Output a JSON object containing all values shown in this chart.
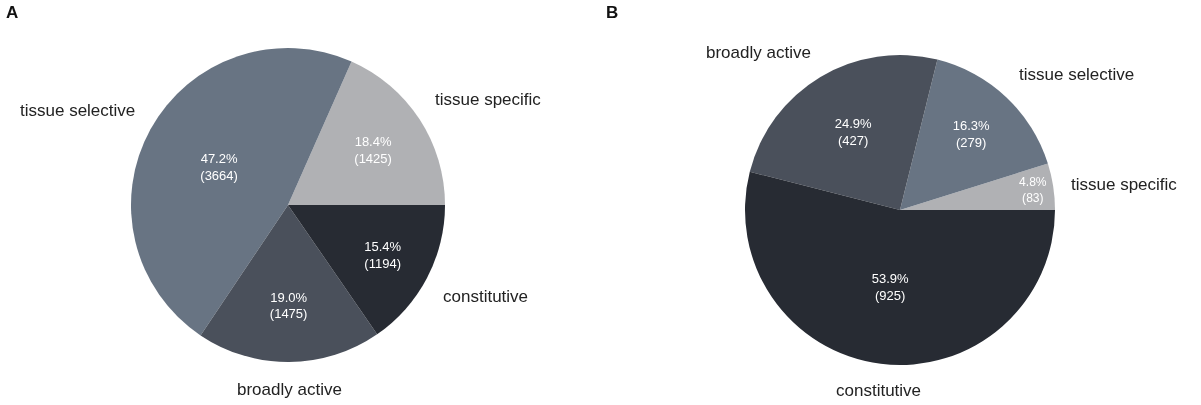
{
  "chart_data": [
    {
      "type": "pie",
      "title": "A",
      "categories": [
        "tissue specific",
        "tissue selective",
        "broadly active",
        "constitutive"
      ],
      "values": [
        1425,
        3664,
        1475,
        1194
      ],
      "colors": [
        "#b0b1b4",
        "#687483",
        "#4a505b",
        "#272b33"
      ],
      "value_labels": [
        "18.4%\n(1425)",
        "47.2%\n(3664)",
        "19.0%\n(1475)",
        "15.4%\n(1194)"
      ]
    },
    {
      "type": "pie",
      "title": "B",
      "categories": [
        "tissue specific",
        "tissue selective",
        "broadly active",
        "constitutive"
      ],
      "values": [
        83,
        279,
        427,
        925
      ],
      "colors": [
        "#b0b1b4",
        "#687483",
        "#4a505b",
        "#272b33"
      ],
      "value_labels": [
        "4.8%\n(83)",
        "16.3%\n(279)",
        "24.9%\n(427)",
        "53.9%\n(925)"
      ]
    }
  ]
}
